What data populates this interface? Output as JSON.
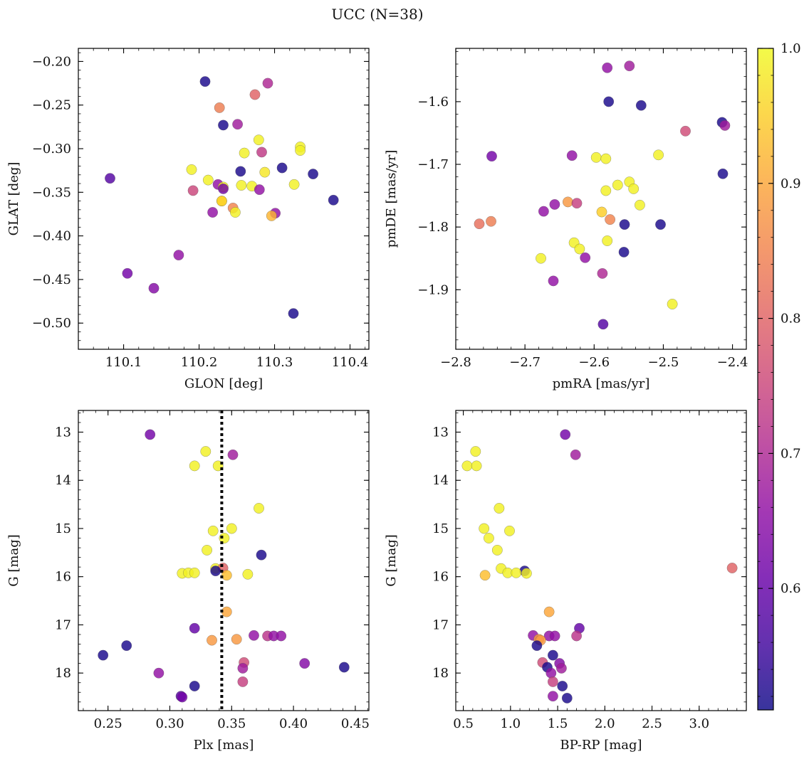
{
  "figure": {
    "title": "UCC (N=38)"
  },
  "colorbar": {
    "min": 0.51,
    "max": 1.0,
    "ticks": [
      "0.6",
      "0.7",
      "0.8",
      "0.9",
      "1.0"
    ],
    "tick_values": [
      0.6,
      0.7,
      0.8,
      0.9,
      1.0
    ],
    "colormap": "plasma"
  },
  "chart_data": [
    {
      "type": "scatter",
      "name": "glon-glat",
      "xlabel": "GLON [deg]",
      "ylabel": "GLAT [deg]",
      "xlim": [
        110.04,
        110.425
      ],
      "ylim": [
        -0.53,
        -0.185
      ],
      "y_inverted": false,
      "xticks": [
        "110.1",
        "110.2",
        "110.3",
        "110.4"
      ],
      "xtick_values": [
        110.1,
        110.2,
        110.3,
        110.4
      ],
      "yticks": [
        "−0.20",
        "−0.25",
        "−0.30",
        "−0.35",
        "−0.40",
        "−0.45",
        "−0.50"
      ],
      "ytick_values": [
        -0.2,
        -0.25,
        -0.3,
        -0.35,
        -0.4,
        -0.45,
        -0.5
      ],
      "points": [
        {
          "x": 110.208,
          "y": -0.223,
          "c": 0.52
        },
        {
          "x": 110.291,
          "y": -0.225,
          "c": 0.7
        },
        {
          "x": 110.274,
          "y": -0.238,
          "c": 0.8
        },
        {
          "x": 110.227,
          "y": -0.253,
          "c": 0.84
        },
        {
          "x": 110.232,
          "y": -0.273,
          "c": 0.52
        },
        {
          "x": 110.251,
          "y": -0.272,
          "c": 0.68
        },
        {
          "x": 110.279,
          "y": -0.29,
          "c": 0.99
        },
        {
          "x": 110.334,
          "y": -0.298,
          "c": 0.99
        },
        {
          "x": 110.334,
          "y": -0.302,
          "c": 0.99
        },
        {
          "x": 110.283,
          "y": -0.304,
          "c": 0.73
        },
        {
          "x": 110.26,
          "y": -0.305,
          "c": 0.99
        },
        {
          "x": 110.31,
          "y": -0.322,
          "c": 0.52
        },
        {
          "x": 110.19,
          "y": -0.324,
          "c": 0.99
        },
        {
          "x": 110.255,
          "y": -0.326,
          "c": 0.52
        },
        {
          "x": 110.287,
          "y": -0.327,
          "c": 0.98
        },
        {
          "x": 110.351,
          "y": -0.329,
          "c": 0.52
        },
        {
          "x": 110.082,
          "y": -0.334,
          "c": 0.58
        },
        {
          "x": 110.212,
          "y": -0.336,
          "c": 0.99
        },
        {
          "x": 110.225,
          "y": -0.341,
          "c": 0.66
        },
        {
          "x": 110.256,
          "y": -0.342,
          "c": 0.99
        },
        {
          "x": 110.27,
          "y": -0.343,
          "c": 0.99
        },
        {
          "x": 110.232,
          "y": -0.344,
          "c": 0.99
        },
        {
          "x": 110.232,
          "y": -0.346,
          "c": 0.62
        },
        {
          "x": 110.326,
          "y": -0.341,
          "c": 0.99
        },
        {
          "x": 110.192,
          "y": -0.348,
          "c": 0.75
        },
        {
          "x": 110.28,
          "y": -0.347,
          "c": 0.66
        },
        {
          "x": 110.378,
          "y": -0.359,
          "c": 0.52
        },
        {
          "x": 110.23,
          "y": -0.36,
          "c": 0.98
        },
        {
          "x": 110.23,
          "y": -0.36,
          "c": 0.95
        },
        {
          "x": 110.245,
          "y": -0.368,
          "c": 0.85
        },
        {
          "x": 110.248,
          "y": -0.373,
          "c": 0.99
        },
        {
          "x": 110.218,
          "y": -0.373,
          "c": 0.66
        },
        {
          "x": 110.301,
          "y": -0.374,
          "c": 0.66
        },
        {
          "x": 110.296,
          "y": -0.377,
          "c": 0.92
        },
        {
          "x": 110.173,
          "y": -0.422,
          "c": 0.66
        },
        {
          "x": 110.105,
          "y": -0.443,
          "c": 0.62
        },
        {
          "x": 110.14,
          "y": -0.46,
          "c": 0.64
        },
        {
          "x": 110.325,
          "y": -0.489,
          "c": 0.52
        }
      ]
    },
    {
      "type": "scatter",
      "name": "pmra-pmde",
      "xlabel": "pmRA [mas/yr]",
      "ylabel": "pmDE [mas/yr]",
      "xlim": [
        -2.8,
        -2.38
      ],
      "ylim": [
        -1.995,
        -1.515
      ],
      "y_inverted": false,
      "xticks": [
        "−2.8",
        "−2.7",
        "−2.6",
        "−2.5",
        "−2.4"
      ],
      "xtick_values": [
        -2.8,
        -2.7,
        -2.6,
        -2.5,
        -2.4
      ],
      "yticks": [
        "−1.6",
        "−1.7",
        "−1.8",
        "−1.9"
      ],
      "ytick_values": [
        -1.6,
        -1.7,
        -1.8,
        -1.9
      ],
      "points": [
        {
          "x": -2.581,
          "y": -1.546,
          "c": 0.66
        },
        {
          "x": -2.549,
          "y": -1.543,
          "c": 0.68
        },
        {
          "x": -2.579,
          "y": -1.6,
          "c": 0.52
        },
        {
          "x": -2.532,
          "y": -1.606,
          "c": 0.52
        },
        {
          "x": -2.415,
          "y": -1.633,
          "c": 0.52
        },
        {
          "x": -2.411,
          "y": -1.638,
          "c": 0.68
        },
        {
          "x": -2.468,
          "y": -1.647,
          "c": 0.76
        },
        {
          "x": -2.748,
          "y": -1.687,
          "c": 0.62
        },
        {
          "x": -2.632,
          "y": -1.686,
          "c": 0.66
        },
        {
          "x": -2.507,
          "y": -1.685,
          "c": 0.99
        },
        {
          "x": -2.597,
          "y": -1.689,
          "c": 0.99
        },
        {
          "x": -2.583,
          "y": -1.691,
          "c": 0.99
        },
        {
          "x": -2.414,
          "y": -1.715,
          "c": 0.52
        },
        {
          "x": -2.549,
          "y": -1.728,
          "c": 0.99
        },
        {
          "x": -2.566,
          "y": -1.733,
          "c": 0.99
        },
        {
          "x": -2.543,
          "y": -1.739,
          "c": 0.99
        },
        {
          "x": -2.583,
          "y": -1.742,
          "c": 0.99
        },
        {
          "x": -2.638,
          "y": -1.76,
          "c": 0.88
        },
        {
          "x": -2.625,
          "y": -1.762,
          "c": 0.74
        },
        {
          "x": -2.657,
          "y": -1.764,
          "c": 0.66
        },
        {
          "x": -2.534,
          "y": -1.765,
          "c": 0.99
        },
        {
          "x": -2.673,
          "y": -1.775,
          "c": 0.66
        },
        {
          "x": -2.589,
          "y": -1.776,
          "c": 0.95
        },
        {
          "x": -2.577,
          "y": -1.788,
          "c": 0.85
        },
        {
          "x": -2.766,
          "y": -1.795,
          "c": 0.82
        },
        {
          "x": -2.749,
          "y": -1.791,
          "c": 0.84
        },
        {
          "x": -2.556,
          "y": -1.796,
          "c": 0.52
        },
        {
          "x": -2.504,
          "y": -1.796,
          "c": 0.52
        },
        {
          "x": -2.629,
          "y": -1.825,
          "c": 0.99
        },
        {
          "x": -2.581,
          "y": -1.822,
          "c": 0.99
        },
        {
          "x": -2.621,
          "y": -1.835,
          "c": 0.99
        },
        {
          "x": -2.557,
          "y": -1.84,
          "c": 0.52
        },
        {
          "x": -2.677,
          "y": -1.85,
          "c": 0.99
        },
        {
          "x": -2.613,
          "y": -1.849,
          "c": 0.66
        },
        {
          "x": -2.588,
          "y": -1.874,
          "c": 0.7
        },
        {
          "x": -2.659,
          "y": -1.886,
          "c": 0.66
        },
        {
          "x": -2.487,
          "y": -1.923,
          "c": 0.99
        },
        {
          "x": -2.587,
          "y": -1.955,
          "c": 0.58
        }
      ]
    },
    {
      "type": "scatter",
      "name": "plx-g",
      "xlabel": "Plx [mas]",
      "ylabel": "G [mag]",
      "xlim": [
        0.226,
        0.461
      ],
      "ylim": [
        12.55,
        18.78
      ],
      "y_inverted": true,
      "xticks": [
        "0.25",
        "0.30",
        "0.35",
        "0.40",
        "0.45"
      ],
      "xtick_values": [
        0.25,
        0.3,
        0.35,
        0.4,
        0.45
      ],
      "yticks": [
        "13",
        "14",
        "15",
        "16",
        "17",
        "18"
      ],
      "ytick_values": [
        13,
        14,
        15,
        16,
        17,
        18
      ],
      "vline": {
        "x": 0.342
      },
      "points": [
        {
          "x": 0.284,
          "y": 13.05,
          "c": 0.62
        },
        {
          "x": 0.329,
          "y": 13.4,
          "c": 0.99
        },
        {
          "x": 0.351,
          "y": 13.47,
          "c": 0.68
        },
        {
          "x": 0.32,
          "y": 13.7,
          "c": 0.99
        },
        {
          "x": 0.339,
          "y": 13.7,
          "c": 0.99
        },
        {
          "x": 0.372,
          "y": 14.58,
          "c": 0.99
        },
        {
          "x": 0.35,
          "y": 15.0,
          "c": 0.99
        },
        {
          "x": 0.335,
          "y": 15.05,
          "c": 0.99
        },
        {
          "x": 0.344,
          "y": 15.2,
          "c": 0.99
        },
        {
          "x": 0.33,
          "y": 15.45,
          "c": 0.99
        },
        {
          "x": 0.374,
          "y": 15.55,
          "c": 0.52
        },
        {
          "x": 0.337,
          "y": 15.83,
          "c": 0.99
        },
        {
          "x": 0.343,
          "y": 15.82,
          "c": 0.8
        },
        {
          "x": 0.337,
          "y": 15.88,
          "c": 0.52
        },
        {
          "x": 0.31,
          "y": 15.93,
          "c": 0.99
        },
        {
          "x": 0.315,
          "y": 15.92,
          "c": 0.99
        },
        {
          "x": 0.32,
          "y": 15.92,
          "c": 0.99
        },
        {
          "x": 0.346,
          "y": 15.97,
          "c": 0.93
        },
        {
          "x": 0.363,
          "y": 15.95,
          "c": 0.99
        },
        {
          "x": 0.346,
          "y": 16.73,
          "c": 0.9
        },
        {
          "x": 0.32,
          "y": 17.07,
          "c": 0.6
        },
        {
          "x": 0.368,
          "y": 17.22,
          "c": 0.66
        },
        {
          "x": 0.379,
          "y": 17.23,
          "c": 0.72
        },
        {
          "x": 0.384,
          "y": 17.23,
          "c": 0.66
        },
        {
          "x": 0.39,
          "y": 17.23,
          "c": 0.66
        },
        {
          "x": 0.334,
          "y": 17.32,
          "c": 0.88
        },
        {
          "x": 0.354,
          "y": 17.3,
          "c": 0.88
        },
        {
          "x": 0.265,
          "y": 17.43,
          "c": 0.52
        },
        {
          "x": 0.246,
          "y": 17.63,
          "c": 0.52
        },
        {
          "x": 0.36,
          "y": 17.78,
          "c": 0.76
        },
        {
          "x": 0.409,
          "y": 17.8,
          "c": 0.64
        },
        {
          "x": 0.359,
          "y": 17.9,
          "c": 0.68
        },
        {
          "x": 0.441,
          "y": 17.88,
          "c": 0.52
        },
        {
          "x": 0.291,
          "y": 18.0,
          "c": 0.66
        },
        {
          "x": 0.359,
          "y": 18.18,
          "c": 0.74
        },
        {
          "x": 0.32,
          "y": 18.27,
          "c": 0.52
        },
        {
          "x": 0.309,
          "y": 18.48,
          "c": 0.58
        },
        {
          "x": 0.31,
          "y": 18.5,
          "c": 0.62
        }
      ]
    },
    {
      "type": "scatter",
      "name": "bprp-g",
      "xlabel": "BP-RP [mag]",
      "ylabel": "G [mag]",
      "xlim": [
        0.42,
        3.5
      ],
      "ylim": [
        12.55,
        18.78
      ],
      "y_inverted": true,
      "xticks": [
        "0.5",
        "1.0",
        "1.5",
        "2.0",
        "2.5",
        "3.0"
      ],
      "xtick_values": [
        0.5,
        1.0,
        1.5,
        2.0,
        2.5,
        3.0
      ],
      "yticks": [
        "13",
        "14",
        "15",
        "16",
        "17",
        "18"
      ],
      "ytick_values": [
        13,
        14,
        15,
        16,
        17,
        18
      ],
      "points": [
        {
          "x": 1.58,
          "y": 13.05,
          "c": 0.62
        },
        {
          "x": 0.63,
          "y": 13.4,
          "c": 0.99
        },
        {
          "x": 1.69,
          "y": 13.47,
          "c": 0.68
        },
        {
          "x": 0.54,
          "y": 13.7,
          "c": 0.99
        },
        {
          "x": 0.64,
          "y": 13.7,
          "c": 0.99
        },
        {
          "x": 0.88,
          "y": 14.58,
          "c": 0.99
        },
        {
          "x": 0.72,
          "y": 15.0,
          "c": 0.99
        },
        {
          "x": 0.99,
          "y": 15.05,
          "c": 0.99
        },
        {
          "x": 0.77,
          "y": 15.2,
          "c": 0.99
        },
        {
          "x": 0.86,
          "y": 15.45,
          "c": 0.99
        },
        {
          "x": 0.9,
          "y": 15.83,
          "c": 0.99
        },
        {
          "x": 1.15,
          "y": 15.88,
          "c": 0.52
        },
        {
          "x": 0.97,
          "y": 15.92,
          "c": 0.99
        },
        {
          "x": 1.06,
          "y": 15.92,
          "c": 0.99
        },
        {
          "x": 1.17,
          "y": 15.93,
          "c": 0.99
        },
        {
          "x": 0.73,
          "y": 15.97,
          "c": 0.93
        },
        {
          "x": 3.35,
          "y": 15.82,
          "c": 0.8
        },
        {
          "x": 1.41,
          "y": 16.73,
          "c": 0.9
        },
        {
          "x": 1.73,
          "y": 17.07,
          "c": 0.6
        },
        {
          "x": 1.24,
          "y": 17.22,
          "c": 0.66
        },
        {
          "x": 1.41,
          "y": 17.23,
          "c": 0.66
        },
        {
          "x": 1.47,
          "y": 17.23,
          "c": 0.66
        },
        {
          "x": 1.7,
          "y": 17.23,
          "c": 0.72
        },
        {
          "x": 1.3,
          "y": 17.3,
          "c": 0.88
        },
        {
          "x": 1.32,
          "y": 17.32,
          "c": 0.88
        },
        {
          "x": 1.28,
          "y": 17.43,
          "c": 0.52
        },
        {
          "x": 1.45,
          "y": 17.63,
          "c": 0.52
        },
        {
          "x": 1.34,
          "y": 17.78,
          "c": 0.76
        },
        {
          "x": 1.52,
          "y": 17.8,
          "c": 0.64
        },
        {
          "x": 1.39,
          "y": 17.88,
          "c": 0.52
        },
        {
          "x": 1.54,
          "y": 17.9,
          "c": 0.68
        },
        {
          "x": 1.43,
          "y": 18.0,
          "c": 0.66
        },
        {
          "x": 1.45,
          "y": 18.18,
          "c": 0.74
        },
        {
          "x": 1.55,
          "y": 18.27,
          "c": 0.52
        },
        {
          "x": 1.45,
          "y": 18.48,
          "c": 0.66
        },
        {
          "x": 1.6,
          "y": 18.52,
          "c": 0.52
        }
      ]
    }
  ]
}
